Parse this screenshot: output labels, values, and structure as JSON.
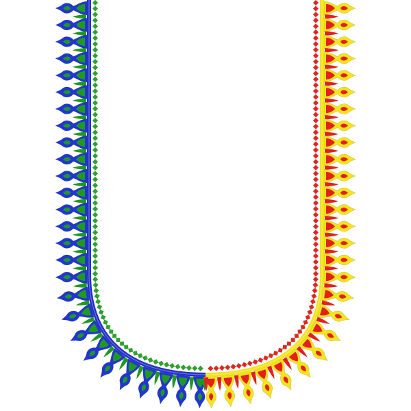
{
  "design": {
    "left_half": {
      "line_color": "#2430c8",
      "motif_outline_color": "#2236d0",
      "motif_fill_color": "#1f9a1f",
      "diamond_color": "#2aa52a"
    },
    "right_half": {
      "line_color": "#f2e21a",
      "motif_outline_color": "#f4e41c",
      "motif_fill_color": "#e3201c",
      "diamond_color": "#e3261e"
    },
    "background_color": "#ffffff"
  }
}
